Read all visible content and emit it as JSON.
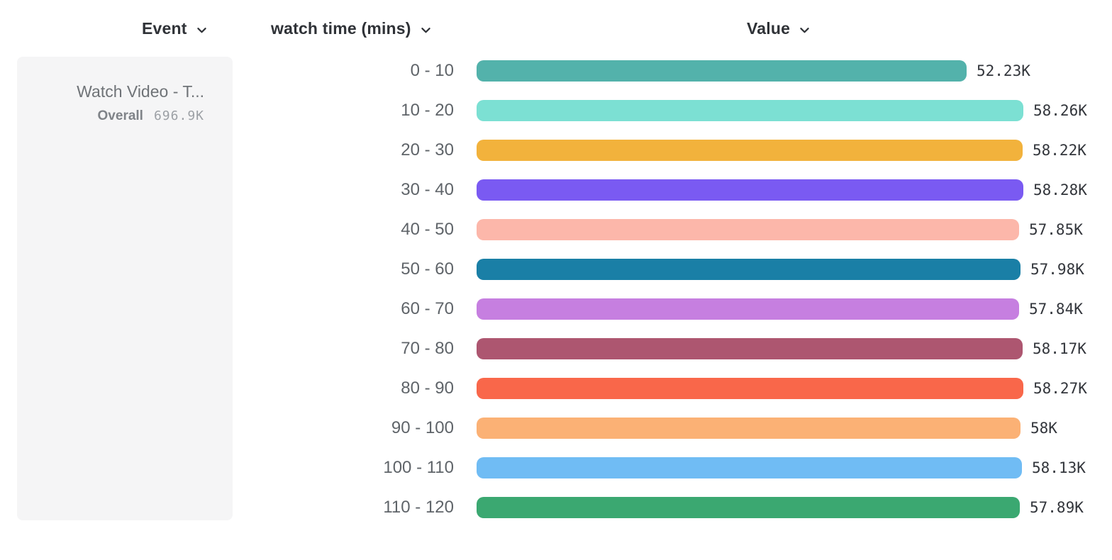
{
  "toolbar": {
    "event_dropdown": {
      "label": "Event"
    },
    "breakdown_dropdown": {
      "label": "watch time (mins)"
    },
    "value_dropdown": {
      "label": "Value"
    }
  },
  "event_card": {
    "event_name": "Watch Video - T...",
    "overall_label": "Overall",
    "overall_value": "696.9K"
  },
  "chart_data": {
    "type": "bar",
    "orientation": "horizontal",
    "title": "",
    "xlabel": "Value",
    "ylabel": "watch time (mins)",
    "grid": false,
    "legend": "none",
    "xlim": [
      0,
      58280
    ],
    "categories": [
      "0 - 10",
      "10 - 20",
      "20 - 30",
      "30 - 40",
      "40 - 50",
      "50 - 60",
      "60 - 70",
      "70 - 80",
      "80 - 90",
      "90 - 100",
      "100 - 110",
      "110 - 120"
    ],
    "values": [
      52230,
      58260,
      58220,
      58280,
      57850,
      57980,
      57840,
      58170,
      58270,
      58000,
      58130,
      57890
    ],
    "value_labels": [
      "52.23K",
      "58.26K",
      "58.22K",
      "58.28K",
      "57.85K",
      "57.98K",
      "57.84K",
      "58.17K",
      "58.27K",
      "58K",
      "58.13K",
      "57.89K"
    ],
    "bar_colors": [
      "#53b2ab",
      "#7ce0d3",
      "#f2b23c",
      "#7a5af2",
      "#fcb7aa",
      "#1a7fa6",
      "#c67fe0",
      "#ad5670",
      "#f9674a",
      "#fbb175",
      "#70bcf4",
      "#3ba871"
    ]
  },
  "colors": {
    "header_text": "#2f3237",
    "category_text": "#5f6469",
    "value_text": "#32353b",
    "card_background": "#f5f5f6",
    "event_name_text": "#6f7377",
    "overall_label_text": "#7f8388",
    "overall_value_text": "#9ca0a5"
  }
}
